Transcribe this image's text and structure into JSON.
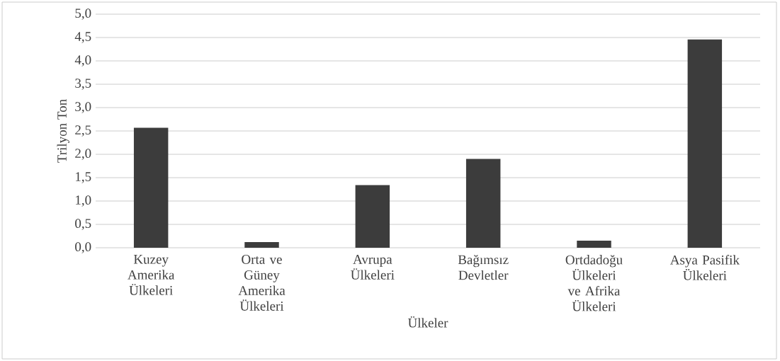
{
  "chart_data": {
    "type": "bar",
    "xlabel": "Ülkeler",
    "ylabel": "Trilyon Ton",
    "categories": [
      "Kuzey Amerika Ülkeleri",
      "Orta ve Güney Amerika Ülkeleri",
      "Avrupa Ülkeleri",
      "Bağımsız Devletler",
      "Ortdadoğu Ülkeleri ve Afrika Ülkeleri",
      "Asya Pasifik Ülkeleri"
    ],
    "values": [
      2.57,
      0.12,
      1.34,
      1.9,
      0.15,
      4.46
    ],
    "color": "#3c3c3c",
    "ylim": [
      0,
      5
    ],
    "yticks": [
      {
        "value": 0,
        "label": "0,0"
      },
      {
        "value": 0.5,
        "label": "0,5"
      },
      {
        "value": 1,
        "label": "1,0"
      },
      {
        "value": 1.5,
        "label": "1,5"
      },
      {
        "value": 2,
        "label": "2,0"
      },
      {
        "value": 2.5,
        "label": "2,5"
      },
      {
        "value": 3,
        "label": "3,0"
      },
      {
        "value": 3.5,
        "label": "3,5"
      },
      {
        "value": 4,
        "label": "4,0"
      },
      {
        "value": 4.5,
        "label": "4,5"
      },
      {
        "value": 5,
        "label": "5,0"
      }
    ],
    "grid": "y"
  }
}
